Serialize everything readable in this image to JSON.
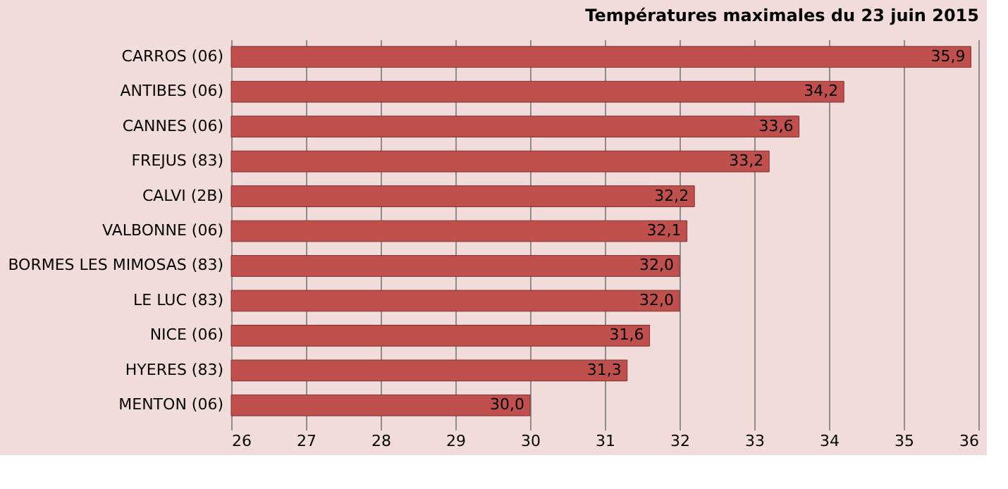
{
  "chart_data": {
    "type": "bar",
    "orientation": "horizontal",
    "title": "Températures maximales du 23 juin 2015",
    "categories": [
      "CARROS (06)",
      "ANTIBES (06)",
      "CANNES (06)",
      "FREJUS (83)",
      "CALVI (2B)",
      "VALBONNE (06)",
      "BORMES LES MIMOSAS (83)",
      "LE LUC (83)",
      "NICE (06)",
      "HYERES (83)",
      "MENTON (06)"
    ],
    "values": [
      35.9,
      34.2,
      33.6,
      33.2,
      32.2,
      32.1,
      32.0,
      32.0,
      31.6,
      31.3,
      30.0
    ],
    "value_labels": [
      "35,9",
      "34,2",
      "33,6",
      "33,2",
      "32,2",
      "32,1",
      "32,0",
      "32,0",
      "31,6",
      "31,3",
      "30,0"
    ],
    "color": "#c0504d",
    "xlim": [
      26,
      36
    ],
    "xticks": [
      26,
      27,
      28,
      29,
      30,
      31,
      32,
      33,
      34,
      35,
      36
    ],
    "grid": "x"
  }
}
